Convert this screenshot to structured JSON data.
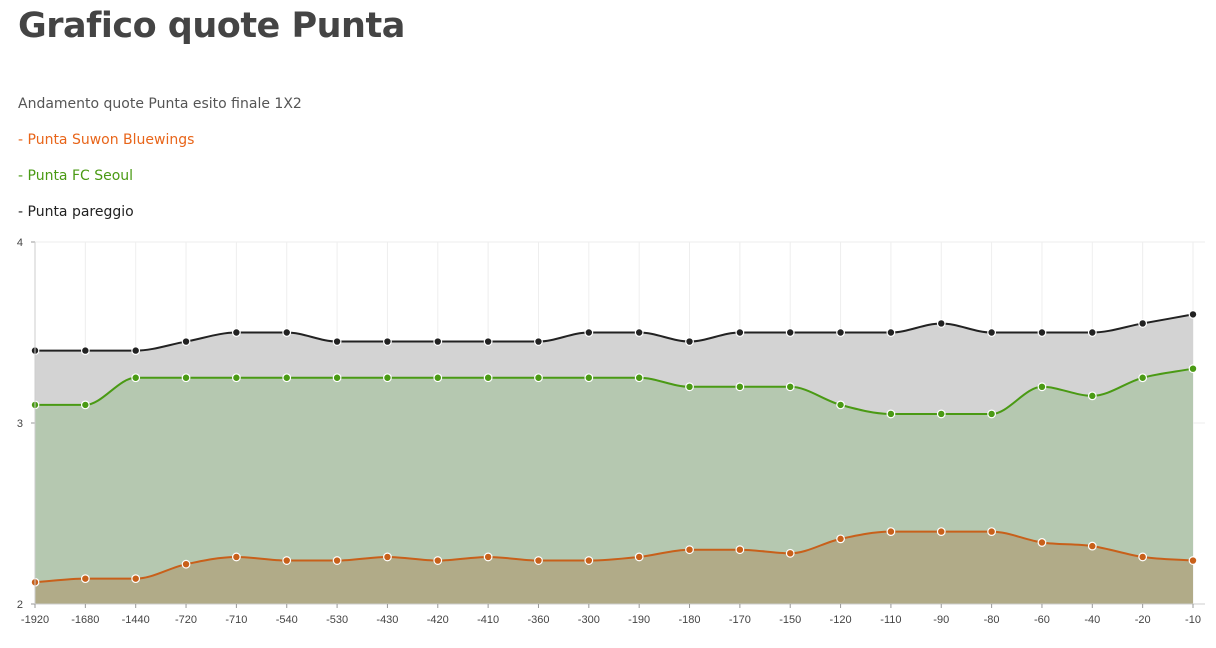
{
  "page": {
    "title": "Grafico quote Punta",
    "subtitle": "Andamento quote Punta esito finale 1X2"
  },
  "legend": [
    {
      "label": "- Punta Suwon Bluewings",
      "color": "#e8651a"
    },
    {
      "label": "- Punta FC Seoul",
      "color": "#4a9a14"
    },
    {
      "label": "- Punta pareggio",
      "color": "#222222"
    }
  ],
  "chart_data": {
    "type": "area",
    "categories": [
      "-1920",
      "-1680",
      "-1440",
      "-720",
      "-710",
      "-540",
      "-530",
      "-430",
      "-420",
      "-410",
      "-360",
      "-300",
      "-190",
      "-180",
      "-170",
      "-150",
      "-120",
      "-110",
      "-90",
      "-80",
      "-60",
      "-40",
      "-20",
      "-10"
    ],
    "ylim": [
      2,
      4
    ],
    "yticks": [
      "2",
      "3",
      "4"
    ],
    "grid": true,
    "series": [
      {
        "name": "Punta pareggio",
        "color": "#222222",
        "fill": "#d3d3d3",
        "values": [
          3.4,
          3.4,
          3.4,
          3.45,
          3.5,
          3.5,
          3.45,
          3.45,
          3.45,
          3.45,
          3.45,
          3.5,
          3.5,
          3.45,
          3.5,
          3.5,
          3.5,
          3.5,
          3.55,
          3.5,
          3.5,
          3.5,
          3.55,
          3.6
        ]
      },
      {
        "name": "Punta FC Seoul",
        "color": "#4a9a14",
        "fill": "#b5c8b0",
        "values": [
          3.1,
          3.1,
          3.25,
          3.25,
          3.25,
          3.25,
          3.25,
          3.25,
          3.25,
          3.25,
          3.25,
          3.25,
          3.25,
          3.2,
          3.2,
          3.2,
          3.1,
          3.05,
          3.05,
          3.05,
          3.2,
          3.15,
          3.25,
          3.3
        ]
      },
      {
        "name": "Punta Suwon Bluewings",
        "color": "#c8601a",
        "fill": "#b1ab88",
        "values": [
          2.12,
          2.14,
          2.14,
          2.22,
          2.26,
          2.24,
          2.24,
          2.26,
          2.24,
          2.26,
          2.24,
          2.24,
          2.26,
          2.3,
          2.3,
          2.28,
          2.36,
          2.4,
          2.4,
          2.4,
          2.34,
          2.32,
          2.26,
          2.24
        ]
      }
    ]
  }
}
